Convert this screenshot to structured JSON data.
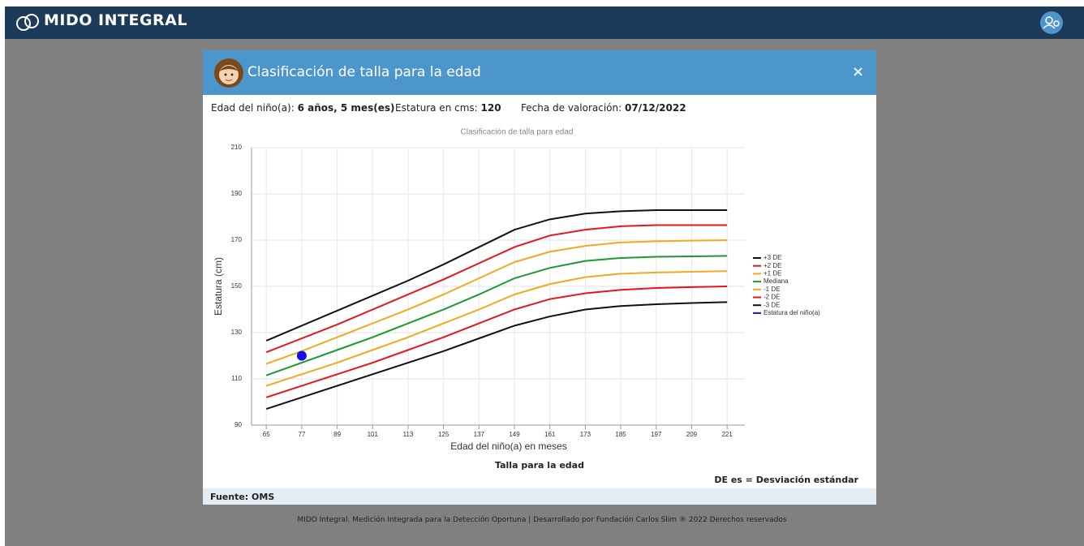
{
  "header": {
    "brand": "MIDO INTEGRAL"
  },
  "modal": {
    "title": "Clasificación de talla para la edad",
    "close": "×",
    "info": {
      "age_label": "Edad del niño(a):",
      "age_value": "6 años, 5 mes(es)",
      "height_label": "Estatura en cms:",
      "height_value": "120",
      "date_label": "Fecha de valoración:",
      "date_value": "07/12/2022"
    },
    "caption": "Talla para la edad",
    "note": "DE es = Desviación estándar",
    "source": "Fuente: OMS"
  },
  "chart_data": {
    "type": "line",
    "title": "Clasificación de talla para edad",
    "x_label": "Edad del niño(a) en meses",
    "y_label": "Estatura (cm)",
    "x": [
      65,
      77,
      89,
      101,
      113,
      125,
      137,
      149,
      161,
      173,
      185,
      197,
      209,
      221
    ],
    "xlim": [
      60,
      227
    ],
    "xticks": [
      65,
      77,
      89,
      101,
      113,
      125,
      137,
      149,
      161,
      173,
      185,
      197,
      209,
      221
    ],
    "ylim": [
      90,
      210
    ],
    "yticks": [
      90,
      110,
      130,
      150,
      170,
      190,
      210
    ],
    "grid": true,
    "legend": "right",
    "series": [
      {
        "name": "+3 DE",
        "color": "#111111",
        "values": [
          126.5,
          133,
          139.5,
          146,
          152.5,
          159.5,
          167,
          174.5,
          179,
          181.5,
          182.5,
          183,
          183,
          183
        ]
      },
      {
        "name": "+2 DE",
        "color": "#e8141b",
        "values": [
          121.5,
          127.5,
          133.5,
          140,
          146.5,
          153,
          160,
          167,
          172,
          174.5,
          176,
          176.5,
          176.5,
          176.5
        ]
      },
      {
        "name": "+1 DE",
        "color": "#f2a91e",
        "values": [
          116.5,
          122,
          128,
          134,
          140,
          146.5,
          153.5,
          160.5,
          165,
          167.5,
          169,
          169.5,
          169.8,
          170
        ]
      },
      {
        "name": "Mediana",
        "color": "#1a9a2e",
        "values": [
          111.5,
          117,
          122.5,
          128,
          134,
          140,
          146.5,
          153.5,
          158,
          161,
          162.3,
          162.8,
          163,
          163.2
        ]
      },
      {
        "name": "-1 DE",
        "color": "#f2a91e",
        "values": [
          107,
          112,
          117,
          122.5,
          128,
          134,
          140,
          146.5,
          151,
          154,
          155.5,
          156,
          156.3,
          156.6
        ]
      },
      {
        "name": "-2 DE",
        "color": "#e8141b",
        "values": [
          102,
          107,
          112,
          117,
          122.5,
          128,
          134,
          140,
          144.5,
          147,
          148.5,
          149.3,
          149.7,
          150
        ]
      },
      {
        "name": "-3 DE",
        "color": "#111111",
        "values": [
          97,
          102,
          107,
          112,
          117,
          122,
          127.5,
          133,
          137,
          140,
          141.5,
          142.3,
          142.8,
          143.2
        ]
      },
      {
        "name": "Estatura del niño(a)",
        "color": "#1010ee",
        "type": "scatter",
        "x": [
          77
        ],
        "values": [
          120
        ]
      }
    ]
  },
  "footer": {
    "text": "MIDO Integral. Medición Integrada para la Detección Oportuna | Desarrollado por Fundación Carlos Slim ® 2022 Derechos reservados"
  }
}
